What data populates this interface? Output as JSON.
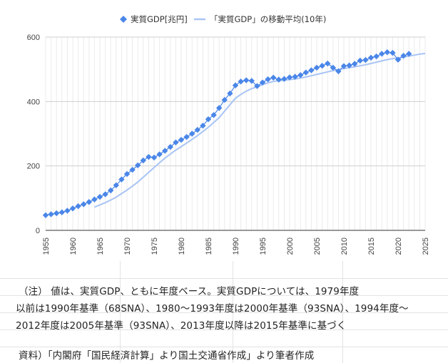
{
  "chart_data": {
    "type": "line",
    "legend": {
      "position": "top",
      "entries": [
        {
          "name": "実質GDP[兆円]",
          "color": "#4a86e8",
          "marker": "diamond"
        },
        {
          "name": "「実質GDP」の移動平均(10年)",
          "color": "#a9c4f5",
          "marker": "line"
        }
      ]
    },
    "xlim": [
      1955,
      2025
    ],
    "ylim": [
      0,
      600
    ],
    "x_ticks": [
      "1955",
      "1960",
      "1965",
      "1970",
      "1975",
      "1980",
      "1985",
      "1990",
      "1995",
      "2000",
      "2005",
      "2010",
      "2015",
      "2020",
      "2025"
    ],
    "y_ticks": [
      "0",
      "200",
      "400",
      "600"
    ],
    "grid": true,
    "series": [
      {
        "name": "実質GDP[兆円]",
        "x": [
          1955,
          1956,
          1957,
          1958,
          1959,
          1960,
          1961,
          1962,
          1963,
          1964,
          1965,
          1966,
          1967,
          1968,
          1969,
          1970,
          1971,
          1972,
          1973,
          1974,
          1975,
          1976,
          1977,
          1978,
          1979,
          1980,
          1981,
          1982,
          1983,
          1984,
          1985,
          1986,
          1987,
          1988,
          1989,
          1990,
          1991,
          1992,
          1993,
          1994,
          1995,
          1996,
          1997,
          1998,
          1999,
          2000,
          2001,
          2002,
          2003,
          2004,
          2005,
          2006,
          2007,
          2008,
          2009,
          2010,
          2011,
          2012,
          2013,
          2014,
          2015,
          2016,
          2017,
          2018,
          2019,
          2020,
          2021,
          2022
        ],
        "y": [
          47,
          50,
          53,
          56,
          61,
          68,
          75,
          81,
          88,
          96,
          104,
          112,
          124,
          140,
          158,
          175,
          188,
          202,
          217,
          228,
          226,
          236,
          247,
          259,
          273,
          281,
          290,
          300,
          312,
          325,
          345,
          358,
          380,
          405,
          425,
          450,
          462,
          466,
          464,
          448,
          459,
          469,
          474,
          468,
          470,
          475,
          477,
          482,
          490,
          497,
          505,
          511,
          518,
          505,
          494,
          510,
          512,
          517,
          527,
          529,
          536,
          540,
          548,
          553,
          551,
          530,
          542,
          548
        ]
      },
      {
        "name": "「実質GDP」の移動平均(10年)",
        "x": [
          1964,
          1965,
          1966,
          1967,
          1968,
          1969,
          1970,
          1971,
          1972,
          1973,
          1974,
          1975,
          1976,
          1977,
          1978,
          1979,
          1980,
          1981,
          1982,
          1983,
          1984,
          1985,
          1986,
          1987,
          1988,
          1989,
          1990,
          1991,
          1992,
          1993,
          1994,
          1995,
          1996,
          1997,
          1998,
          1999,
          2000,
          2001,
          2002,
          2003,
          2004,
          2005,
          2006,
          2007,
          2008,
          2009,
          2010,
          2011,
          2012,
          2013,
          2014,
          2015,
          2016,
          2017,
          2018,
          2019,
          2020,
          2021,
          2022,
          2023,
          2024,
          2025
        ],
        "y": [
          72,
          79,
          86,
          94,
          103,
          114,
          125,
          137,
          150,
          165,
          180,
          195,
          210,
          224,
          237,
          249,
          260,
          271,
          282,
          294,
          307,
          320,
          335,
          350,
          370,
          390,
          410,
          422,
          432,
          440,
          446,
          452,
          458,
          462,
          465,
          466,
          468,
          470,
          473,
          476,
          480,
          484,
          488,
          492,
          496,
          499,
          502,
          505,
          508,
          511,
          514,
          518,
          522,
          526,
          530,
          533,
          535,
          538,
          541,
          544,
          547,
          549
        ]
      }
    ]
  },
  "notes": {
    "line1": "（注） 値は、実質GDP、ともに年度ベース。実質GDPについては、1979年度",
    "line2": "以前は1990年基準（68SNA）、1980～1993年度は2000年基準（93SNA）、1994年度～",
    "line3": "2012年度は2005年基準（93SNA）、2013年度以降は2015年基準に基づく",
    "line4": "資料）「内閣府「国民経済計算」より国土交通省作成」より筆者作成"
  }
}
